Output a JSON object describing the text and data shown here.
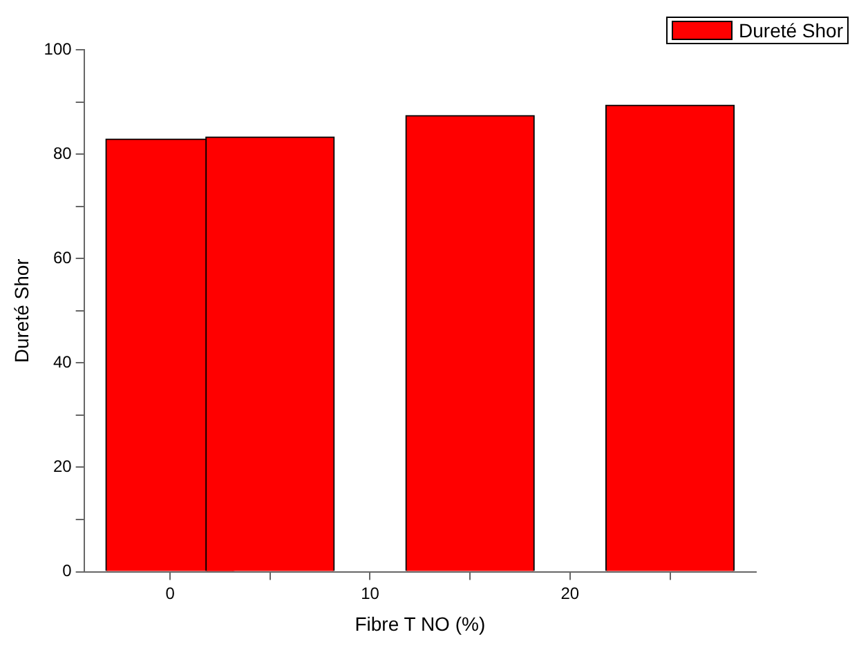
{
  "chart_data": {
    "type": "bar",
    "xlabel": "Fibre T NO (%)",
    "ylabel": "Dureté Shor",
    "x": [
      0,
      5,
      15,
      25
    ],
    "series": [
      {
        "name": "Dureté Shor",
        "color": "#ff0000",
        "values": [
          82.9,
          83.3,
          87.4,
          89.4
        ]
      }
    ],
    "xlim": [
      -4.3,
      29.3
    ],
    "xticks": [
      0,
      {
        "value": 5,
        "label": null
      },
      10,
      {
        "value": 15,
        "label": null
      },
      20,
      {
        "value": 25,
        "label": null
      }
    ],
    "ylim": [
      0,
      100
    ],
    "yticks": [
      0,
      {
        "value": 10,
        "label": null
      },
      20,
      {
        "value": 30,
        "label": null
      },
      40,
      {
        "value": 50,
        "label": null
      },
      60,
      {
        "value": 70,
        "label": null
      },
      80,
      {
        "value": 90,
        "label": null
      },
      100
    ],
    "grid": false,
    "legend": "top right"
  }
}
